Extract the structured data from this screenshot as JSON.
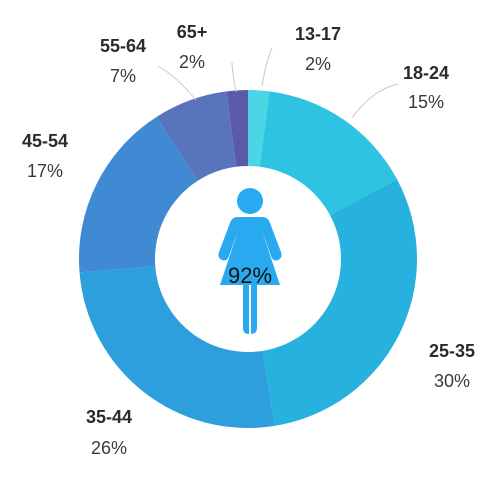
{
  "chart_data": {
    "type": "pie",
    "categories": [
      "13-17",
      "18-24",
      "25-35",
      "35-44",
      "45-54",
      "55-64",
      "65+"
    ],
    "values": [
      2,
      15,
      30,
      26,
      17,
      7,
      2
    ],
    "value_labels": [
      "2%",
      "15%",
      "30%",
      "26%",
      "17%",
      "7%",
      "2%"
    ],
    "colors": [
      "#4ad6e4",
      "#2ec3e0",
      "#27b1de",
      "#2c9fdc",
      "#3f8ad2",
      "#5a73bd",
      "#5b5aa8"
    ],
    "center": {
      "icon": "female-person-icon",
      "icon_color": "#29aaf0",
      "value": 92,
      "label": "92%"
    }
  }
}
